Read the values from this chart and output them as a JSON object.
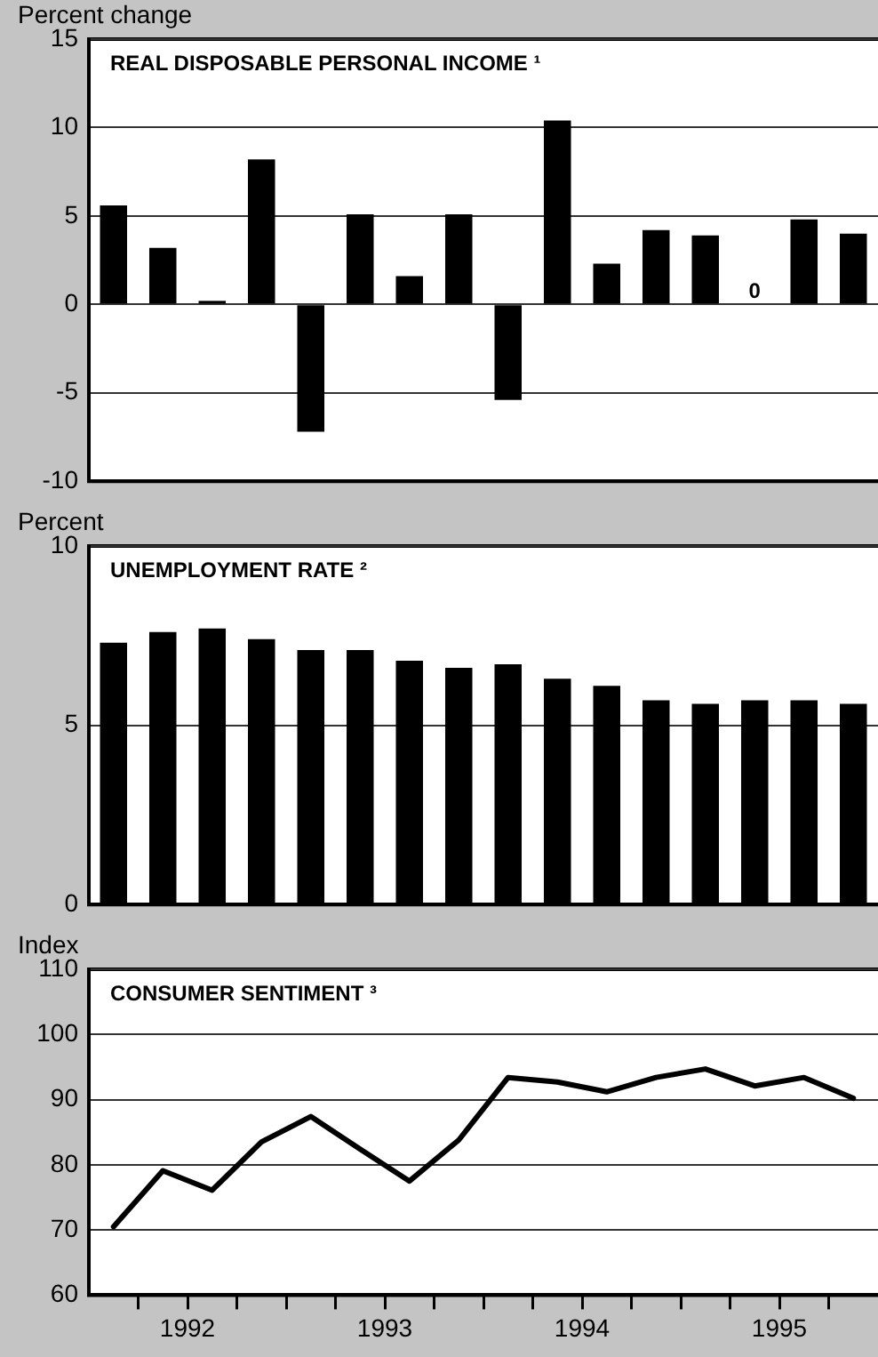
{
  "chart_data": [
    {
      "type": "bar",
      "title": "REAL DISPOSABLE PERSONAL INCOME ¹",
      "ylabel": "Percent change",
      "categories": [
        null,
        null,
        null,
        null,
        null,
        null,
        null,
        null,
        null,
        null,
        null,
        null,
        null,
        null,
        null,
        null
      ],
      "series": [
        {
          "color": "#000000",
          "values": [
            5.6,
            3.2,
            0.2,
            8.2,
            -7.2,
            5.1,
            1.6,
            5.1,
            -5.4,
            10.4,
            2.3,
            4.2,
            3.9,
            0,
            4.8,
            4.0
          ],
          "value_labels": [
            null,
            null,
            null,
            null,
            null,
            null,
            null,
            null,
            null,
            null,
            null,
            null,
            null,
            "0",
            null,
            null
          ]
        }
      ],
      "ylim": [
        -10,
        15
      ],
      "yticks": [
        -10,
        -5,
        0,
        5,
        10,
        15
      ],
      "grid": "y",
      "tick_labels": "y",
      "legend": false
    },
    {
      "type": "bar",
      "title": "UNEMPLOYMENT RATE ²",
      "ylabel": "Percent",
      "categories": [
        null,
        null,
        null,
        null,
        null,
        null,
        null,
        null,
        null,
        null,
        null,
        null,
        null,
        null,
        null,
        null
      ],
      "series": [
        {
          "color": "#000000",
          "values": [
            7.3,
            7.6,
            7.7,
            7.4,
            7.1,
            7.1,
            6.8,
            6.6,
            6.7,
            6.3,
            6.1,
            5.7,
            5.6,
            5.7,
            5.7,
            5.6
          ]
        }
      ],
      "ylim": [
        0,
        10
      ],
      "yticks": [
        0,
        5,
        10
      ],
      "grid": "y",
      "tick_labels": "y",
      "legend": false
    },
    {
      "type": "line",
      "title": "CONSUMER SENTIMENT ³",
      "ylabel": "Index",
      "x": [
        1992.125,
        1992.375,
        1992.625,
        1992.875,
        1993.125,
        1993.375,
        1993.625,
        1993.875,
        1994.125,
        1994.375,
        1994.625,
        1994.875,
        1995.125,
        1995.375,
        1995.625,
        1995.875
      ],
      "series": [
        {
          "color": "#000000",
          "values": [
            70.5,
            79.1,
            76.1,
            83.5,
            87.4,
            82.4,
            77.5,
            83.8,
            93.4,
            92.7,
            91.2,
            93.4,
            94.7,
            92.1,
            93.4,
            90.2
          ]
        }
      ],
      "xlim": [
        1992,
        1996
      ],
      "xticks": [
        {
          "value": 1992.25,
          "label": null
        },
        {
          "value": 1992.5,
          "label": "1992"
        },
        {
          "value": 1992.75,
          "label": null
        },
        {
          "value": 1993,
          "label": null
        },
        {
          "value": 1993.25,
          "label": null
        },
        {
          "value": 1993.5,
          "label": "1993"
        },
        {
          "value": 1993.75,
          "label": null
        },
        {
          "value": 1994,
          "label": null
        },
        {
          "value": 1994.25,
          "label": null
        },
        {
          "value": 1994.5,
          "label": "1994"
        },
        {
          "value": 1994.75,
          "label": null
        },
        {
          "value": 1995,
          "label": null
        },
        {
          "value": 1995.25,
          "label": null
        },
        {
          "value": 1995.5,
          "label": "1995"
        },
        {
          "value": 1995.75,
          "label": null
        }
      ],
      "ylim": [
        60,
        110
      ],
      "yticks": [
        60,
        70,
        80,
        90,
        100,
        110
      ],
      "grid": "y",
      "marker": "none",
      "line_style": "solid",
      "legend": false
    }
  ]
}
